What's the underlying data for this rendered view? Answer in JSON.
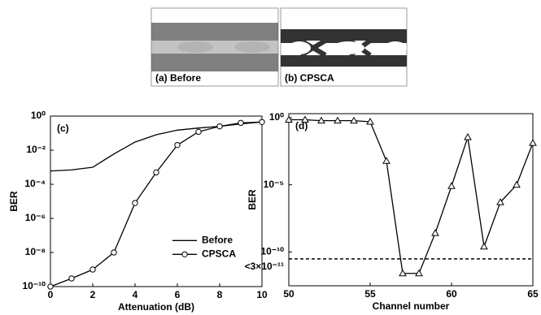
{
  "eye_diagrams": [
    {
      "label": "(a) Before"
    },
    {
      "label": "(b) CPSCA"
    }
  ],
  "chart_data": [
    {
      "type": "line",
      "annotation": "(c)",
      "x_label": "Attenuation (dB)",
      "y_label": "BER",
      "log_y": true,
      "legend": "center right",
      "x": [
        0,
        1,
        2,
        3,
        4,
        5,
        6,
        7,
        8,
        9,
        10
      ],
      "series": [
        {
          "name": "Before",
          "color": "#000000",
          "marker": "none",
          "values": [
            0.0006,
            0.0007,
            0.001,
            0.006,
            0.03,
            0.08,
            0.15,
            0.2,
            0.25,
            0.35,
            0.45
          ]
        },
        {
          "name": "CPSCA",
          "color": "#000000",
          "marker": "circle",
          "values": [
            1e-10,
            3e-10,
            1e-09,
            1e-08,
            8e-06,
            0.0005,
            0.02,
            0.12,
            0.25,
            0.4,
            0.45
          ]
        }
      ],
      "xlim": [
        0,
        10
      ],
      "xticks": [
        0,
        2,
        4,
        6,
        8,
        10
      ],
      "ylim": [
        1e-10,
        1
      ],
      "yticks": [
        {
          "value": 1e-10,
          "label": "10⁻¹⁰"
        },
        {
          "value": 1e-08,
          "label": "10⁻⁸"
        },
        {
          "value": 1e-06,
          "label": "10⁻⁶"
        },
        {
          "value": 0.0001,
          "label": "10⁻⁴"
        },
        {
          "value": 0.01,
          "label": "10⁻²"
        },
        {
          "value": 1,
          "label": "10⁰"
        }
      ]
    },
    {
      "type": "line",
      "annotation": "(d)",
      "x_label": "Channel number",
      "y_label": "BER",
      "log_y": true,
      "color": "#000000",
      "marker": "triangle",
      "x": [
        50,
        51,
        52,
        53,
        54,
        55,
        56,
        57,
        58,
        59,
        60,
        61,
        62,
        63,
        64,
        65
      ],
      "values": [
        0.7,
        0.7,
        0.6,
        0.6,
        0.6,
        0.5,
        0.0006,
        2.5e-12,
        2.5e-12,
        2.5e-09,
        8e-06,
        0.035,
        2.5e-10,
        5e-07,
        1e-05,
        0.013
      ],
      "xlim": [
        50,
        65
      ],
      "xticks": [
        50,
        55,
        60,
        65
      ],
      "ylim": [
        3e-13,
        2
      ],
      "yticks": [
        {
          "value": 1e-10,
          "label": "10⁻¹⁰"
        },
        {
          "value": 1e-05,
          "label": "10⁻⁵"
        },
        {
          "value": 1,
          "label": "10⁰"
        }
      ],
      "threshold_line": {
        "value": 3e-11,
        "label": "<3×10⁻¹¹"
      }
    }
  ]
}
